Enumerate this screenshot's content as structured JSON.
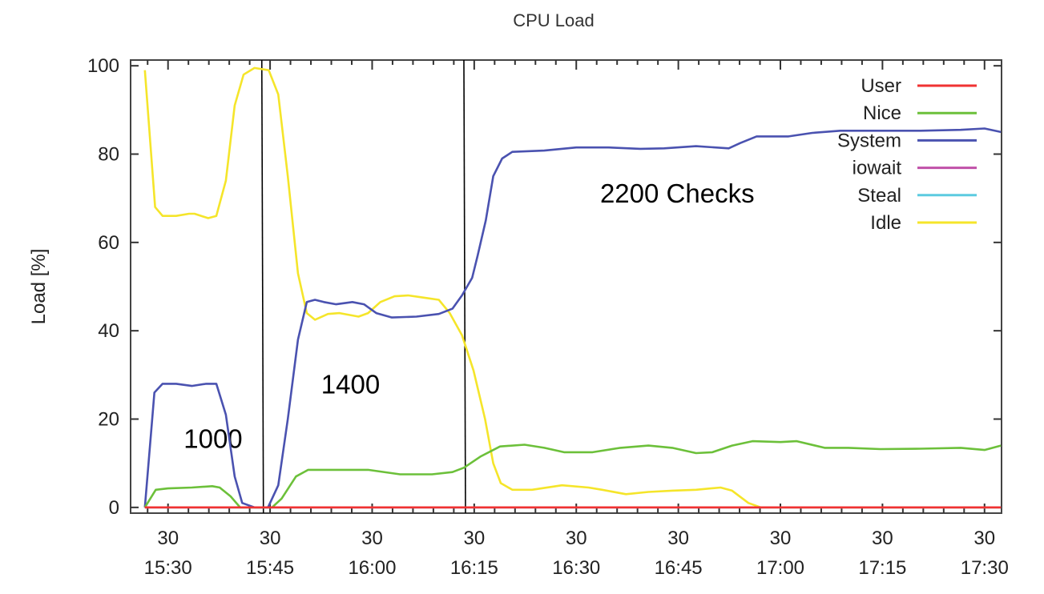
{
  "chart_data": {
    "type": "line",
    "title": "CPU Load",
    "xlabel": "",
    "ylabel": "Load [%]",
    "x_unit": "minutes after 15:30",
    "xlim": [
      -5.5,
      122.5
    ],
    "ylim": [
      -1.3,
      101.3
    ],
    "yticks": [
      0,
      20,
      40,
      60,
      80,
      100
    ],
    "xticks": [
      {
        "value": 0,
        "day": "30",
        "time": "15:30"
      },
      {
        "value": 15,
        "day": "30",
        "time": "15:45"
      },
      {
        "value": 30,
        "day": "30",
        "time": "16:00"
      },
      {
        "value": 45,
        "day": "30",
        "time": "16:15"
      },
      {
        "value": 60,
        "day": "30",
        "time": "16:30"
      },
      {
        "value": 75,
        "day": "30",
        "time": "16:45"
      },
      {
        "value": 90,
        "day": "30",
        "time": "17:00"
      },
      {
        "value": 105,
        "day": "30",
        "time": "17:15"
      },
      {
        "value": 120,
        "day": "30",
        "time": "17:30"
      }
    ],
    "minor_xtick_step": 3,
    "grid": false,
    "legend_position": "top-right",
    "series": [
      {
        "name": "User",
        "color": "#f03232",
        "x": [
          -3.4,
          122.4
        ],
        "y": [
          0,
          0
        ]
      },
      {
        "name": "Nice",
        "color": "#6cc03a",
        "x": [
          -3.4,
          -1.8,
          0,
          3.5,
          6.5,
          7.6,
          9.2,
          10.6,
          15.3,
          16.7,
          18.8,
          20.6,
          24.7,
          29.4,
          34.1,
          38.8,
          41.8,
          43.5,
          45.9,
          48.8,
          52.4,
          55.3,
          58.2,
          62.4,
          66.5,
          70.6,
          74.1,
          77.6,
          80,
          82.9,
          85.9,
          90,
          92.4,
          96.5,
          100,
          104.7,
          110.6,
          116.5,
          120,
          122.4
        ],
        "y": [
          0,
          4,
          4.3,
          4.5,
          4.8,
          4.5,
          2.5,
          0,
          0,
          2,
          7,
          8.5,
          8.5,
          8.5,
          7.5,
          7.5,
          8,
          9,
          11.5,
          13.8,
          14.2,
          13.5,
          12.5,
          12.5,
          13.5,
          14,
          13.5,
          12.3,
          12.5,
          14,
          15,
          14.8,
          15,
          13.5,
          13.5,
          13.2,
          13.3,
          13.5,
          13,
          14
        ]
      },
      {
        "name": "System",
        "color": "#4a52b0",
        "x": [
          -3.4,
          -2.0,
          -0.8,
          1.2,
          3.5,
          5.6,
          7.1,
          8.5,
          9.8,
          10.9,
          12.7,
          14.7,
          16.2,
          17.6,
          19.1,
          20.4,
          21.6,
          22.9,
          24.7,
          27.1,
          28.8,
          30.6,
          32.9,
          36.5,
          39.8,
          41.8,
          43.2,
          44.7,
          45.5,
          46.7,
          47.8,
          49.1,
          50.6,
          55.3,
          60,
          64.7,
          69.4,
          72.9,
          77.6,
          82.4,
          84.1,
          86.5,
          91.2,
          94.7,
          98.8,
          104.7,
          110.6,
          116.5,
          120,
          122.4
        ],
        "y": [
          0,
          26,
          28,
          28,
          27.5,
          28,
          28,
          21,
          7,
          1,
          0,
          0,
          5,
          20,
          38,
          46.5,
          47,
          46.5,
          46,
          46.5,
          46,
          44,
          43,
          43.2,
          43.8,
          45,
          48,
          52,
          57,
          65,
          75,
          79,
          80.5,
          80.8,
          81.5,
          81.5,
          81.2,
          81.3,
          81.8,
          81.3,
          82.5,
          84,
          84,
          84.8,
          85.3,
          85.3,
          85.3,
          85.5,
          85.8,
          85
        ]
      },
      {
        "name": "iowait",
        "color": "#c050a8",
        "x": [
          -3.4,
          122.4
        ],
        "y": [
          0,
          0
        ]
      },
      {
        "name": "Steal",
        "color": "#5ccbe0",
        "x": [
          -3.4,
          122.4
        ],
        "y": [
          0,
          0
        ]
      },
      {
        "name": "Idle",
        "color": "#f5e52a",
        "x": [
          -3.4,
          -1.9,
          -0.8,
          1.2,
          3.1,
          3.9,
          5.9,
          7.1,
          8.5,
          9.8,
          11.1,
          12.7,
          14.8,
          16.2,
          17.6,
          19.1,
          20.4,
          21.6,
          23.5,
          25.2,
          28.0,
          29.4,
          31.2,
          33.3,
          35.3,
          37.6,
          39.8,
          41.4,
          43.2,
          44.9,
          46.6,
          47.8,
          48.9,
          50.6,
          53.5,
          57.9,
          61.8,
          63.8,
          67.3,
          70.6,
          74.1,
          77.6,
          81.2,
          82.9,
          85.3,
          87.1,
          122.4
        ],
        "y": [
          99,
          68,
          66,
          66,
          66.5,
          66.5,
          65.5,
          66,
          74,
          91,
          98,
          99.5,
          99,
          93.5,
          75,
          53,
          44,
          42.5,
          43.8,
          44,
          43.2,
          44,
          46.5,
          47.8,
          48,
          47.5,
          47,
          44,
          39,
          31,
          20,
          10,
          5.5,
          4,
          4,
          5,
          4.5,
          4,
          3,
          3.5,
          3.8,
          4,
          4.5,
          3.8,
          1,
          0,
          0
        ]
      }
    ],
    "markers": [
      {
        "x": 13.9,
        "label": "1000",
        "label_x": 2.3,
        "label_y": 13.5
      },
      {
        "x": 43.6,
        "label": "1400",
        "label_x": 22.5,
        "label_y": 25.8
      },
      {
        "x": 122.4,
        "label": "2200 Checks",
        "label_x": 63.5,
        "label_y": 69
      }
    ]
  }
}
